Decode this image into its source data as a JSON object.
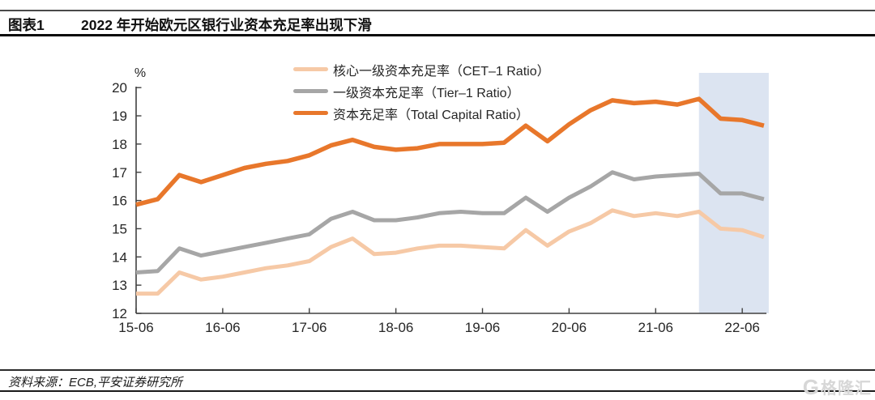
{
  "header": {
    "tag": "图表1",
    "title": "2022 年开始欧元区银行业资本充足率出现下滑"
  },
  "source": {
    "text": "资料来源：ECB,平安证券研究所"
  },
  "logo": {
    "g": "G",
    "wordmark": "格隆汇"
  },
  "colors": {
    "axis": "#404040",
    "tick_text": "#262626",
    "highlight": "#DCE4F1",
    "cet1": "#F6C9A6",
    "tier1": "#A6A6A6",
    "total": "#E8772B"
  },
  "chart_data": {
    "type": "line",
    "unit_label": "%",
    "ylim": [
      12,
      20
    ],
    "y_ticks": [
      12,
      13,
      14,
      15,
      16,
      17,
      18,
      19,
      20
    ],
    "grid": false,
    "legend_position": "top-center-inside",
    "x_tick_labels": [
      "15-06",
      "16-06",
      "17-06",
      "18-06",
      "19-06",
      "20-06",
      "21-06",
      "22-06"
    ],
    "x": [
      "15-06",
      "15-09",
      "15-12",
      "16-03",
      "16-06",
      "16-09",
      "16-12",
      "17-03",
      "17-06",
      "17-09",
      "17-12",
      "18-03",
      "18-06",
      "18-09",
      "18-12",
      "19-03",
      "19-06",
      "19-09",
      "19-12",
      "20-03",
      "20-06",
      "20-09",
      "20-12",
      "21-03",
      "21-06",
      "21-09",
      "21-12",
      "22-03",
      "22-06",
      "22-09"
    ],
    "series": [
      {
        "name": "核心一级资本充足率（CET–1 Ratio）",
        "color": "#F6C9A6",
        "values": [
          12.7,
          12.7,
          13.45,
          13.2,
          13.3,
          13.45,
          13.6,
          13.7,
          13.85,
          14.35,
          14.65,
          14.1,
          14.15,
          14.3,
          14.4,
          14.4,
          14.35,
          14.3,
          14.95,
          14.4,
          14.9,
          15.2,
          15.65,
          15.45,
          15.55,
          15.45,
          15.6,
          15.0,
          14.95,
          14.7
        ]
      },
      {
        "name": "一级资本充足率（Tier–1 Ratio）",
        "color": "#A6A6A6",
        "values": [
          13.45,
          13.5,
          14.3,
          14.05,
          14.2,
          14.35,
          14.5,
          14.65,
          14.8,
          15.35,
          15.6,
          15.3,
          15.3,
          15.4,
          15.55,
          15.6,
          15.55,
          15.55,
          16.1,
          15.6,
          16.1,
          16.5,
          17.0,
          16.75,
          16.85,
          16.9,
          16.95,
          16.25,
          16.25,
          16.05
        ]
      },
      {
        "name": "资本充足率（Total Capital Ratio）",
        "color": "#E8772B",
        "values": [
          15.85,
          16.05,
          16.9,
          16.65,
          16.9,
          17.15,
          17.3,
          17.4,
          17.6,
          17.95,
          18.15,
          17.9,
          17.8,
          17.85,
          18.0,
          18.0,
          18.0,
          18.05,
          18.65,
          18.1,
          18.7,
          19.2,
          19.55,
          19.45,
          19.5,
          19.4,
          19.6,
          18.9,
          18.85,
          18.65
        ]
      }
    ],
    "highlight_region": {
      "from": "21-12",
      "to": "22-09",
      "color": "#DCE4F1"
    }
  }
}
